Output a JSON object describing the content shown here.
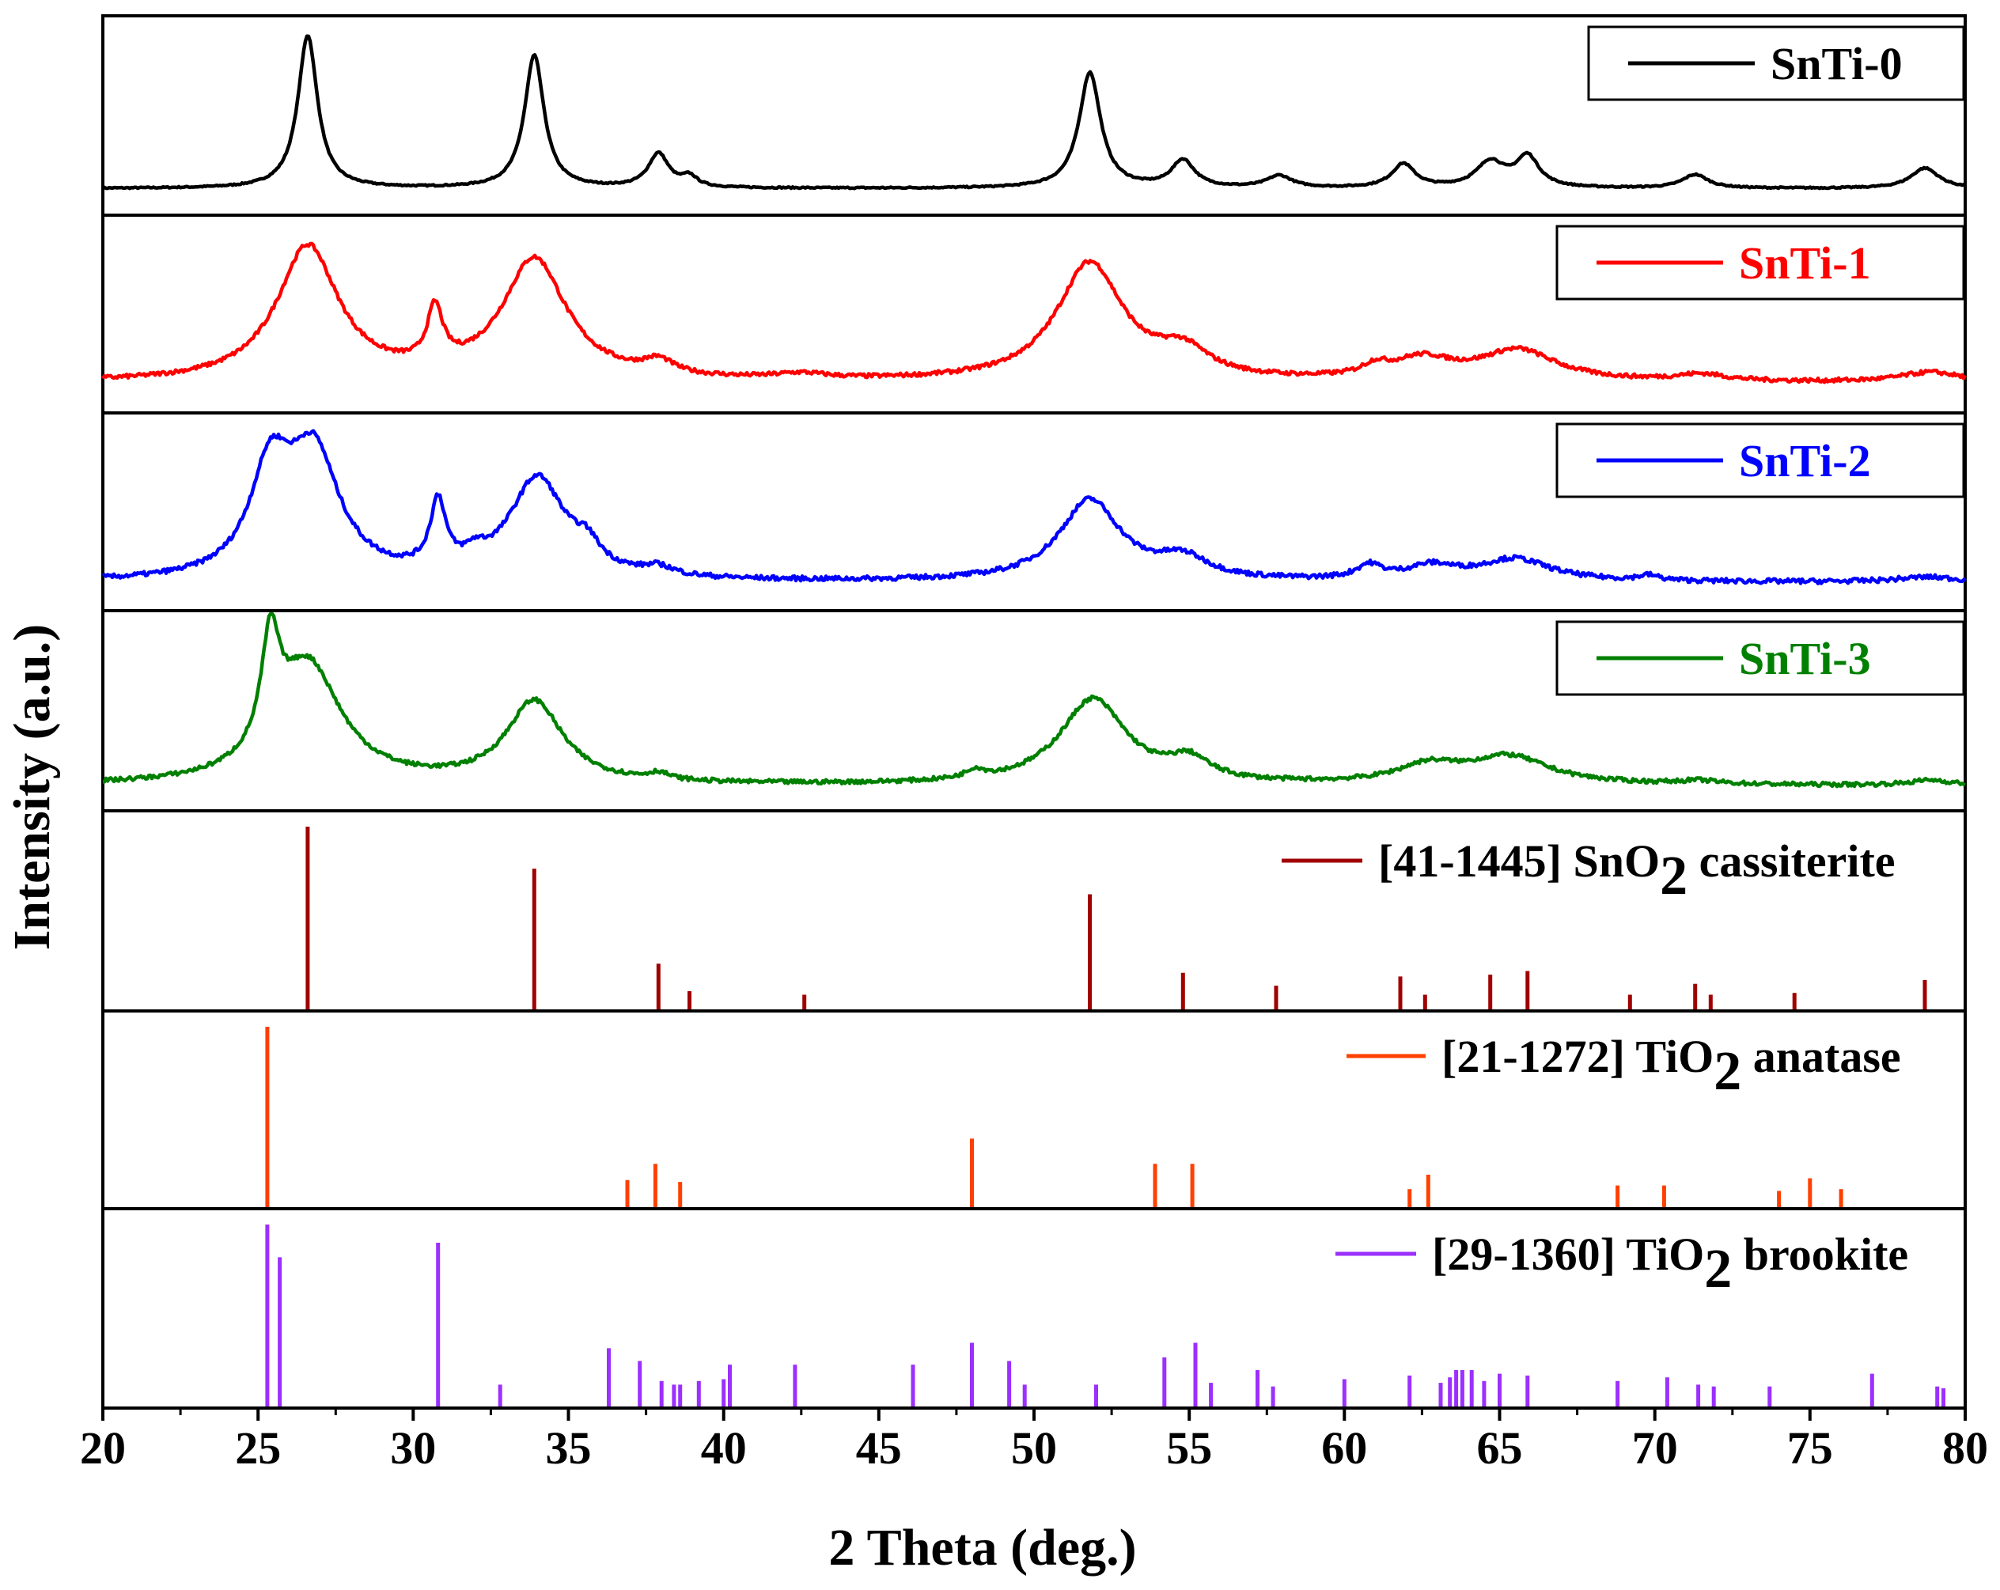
{
  "chart_data": {
    "type": "line",
    "xlabel": "2 Theta (deg.)",
    "ylabel": "Intensity (a.u.)",
    "xlim": [
      20,
      80
    ],
    "xticks": [
      "20",
      "25",
      "30",
      "35",
      "40",
      "45",
      "50",
      "55",
      "60",
      "65",
      "70",
      "75",
      "80"
    ],
    "series": [
      {
        "name": "SnTi-0",
        "color": "#000000",
        "baseline": 0.1,
        "peaks": [
          [
            26.6,
            0.9,
            0.38
          ],
          [
            33.9,
            0.78,
            0.38
          ],
          [
            37.9,
            0.2,
            0.4
          ],
          [
            38.9,
            0.06,
            0.3
          ],
          [
            51.8,
            0.68,
            0.42
          ],
          [
            54.8,
            0.16,
            0.45
          ],
          [
            57.9,
            0.07,
            0.5
          ],
          [
            61.9,
            0.14,
            0.45
          ],
          [
            64.7,
            0.15,
            0.55
          ],
          [
            65.9,
            0.18,
            0.45
          ],
          [
            71.3,
            0.08,
            0.5
          ],
          [
            78.7,
            0.12,
            0.55
          ]
        ]
      },
      {
        "name": "SnTi-1",
        "color": "#ff0000",
        "baseline": 0.12,
        "peaks": [
          [
            26.6,
            0.8,
            1.2
          ],
          [
            30.7,
            0.33,
            0.3
          ],
          [
            33.9,
            0.72,
            1.25
          ],
          [
            37.9,
            0.08,
            0.6
          ],
          [
            42.5,
            0.03,
            1.0
          ],
          [
            51.8,
            0.7,
            1.3
          ],
          [
            54.8,
            0.15,
            1.0
          ],
          [
            61.0,
            0.06,
            0.5
          ],
          [
            62.5,
            0.12,
            1.2
          ],
          [
            65.6,
            0.18,
            1.5
          ],
          [
            71.5,
            0.04,
            1.0
          ],
          [
            78.9,
            0.06,
            1.2
          ]
        ]
      },
      {
        "name": "SnTi-2",
        "color": "#0000ff",
        "baseline": 0.11,
        "peaks": [
          [
            25.4,
            0.6,
            0.8
          ],
          [
            26.8,
            0.72,
            1.0
          ],
          [
            30.8,
            0.4,
            0.3
          ],
          [
            32.0,
            0.07,
            0.4
          ],
          [
            34.0,
            0.6,
            1.1
          ],
          [
            35.6,
            0.12,
            0.5
          ],
          [
            37.9,
            0.05,
            0.6
          ],
          [
            51.8,
            0.48,
            1.2
          ],
          [
            54.8,
            0.12,
            1.0
          ],
          [
            60.8,
            0.08,
            0.5
          ],
          [
            62.8,
            0.08,
            1.0
          ],
          [
            65.5,
            0.13,
            1.4
          ],
          [
            69.8,
            0.03,
            0.4
          ],
          [
            78.8,
            0.03,
            1.2
          ]
        ]
      },
      {
        "name": "SnTi-3",
        "color": "#008000",
        "baseline": 0.09,
        "peaks": [
          [
            25.4,
            0.62,
            0.35
          ],
          [
            26.6,
            0.7,
            1.3
          ],
          [
            33.9,
            0.48,
            1.1
          ],
          [
            37.9,
            0.04,
            0.4
          ],
          [
            48.1,
            0.05,
            0.35
          ],
          [
            51.9,
            0.5,
            1.3
          ],
          [
            55.0,
            0.12,
            0.8
          ],
          [
            62.7,
            0.1,
            1.2
          ],
          [
            65.3,
            0.16,
            1.6
          ],
          [
            71.4,
            0.02,
            0.8
          ],
          [
            78.9,
            0.03,
            0.8
          ]
        ]
      }
    ],
    "references": [
      {
        "name": "[41-1445] SnO2 cassiterite",
        "label_prefix": "[41-1445] SnO",
        "label_sub": "2",
        "label_suffix": " cassiterite",
        "color": "#a00000",
        "lines": [
          [
            26.6,
            1.0
          ],
          [
            33.9,
            0.77
          ],
          [
            37.9,
            0.25
          ],
          [
            38.9,
            0.1
          ],
          [
            42.6,
            0.08
          ],
          [
            51.8,
            0.63
          ],
          [
            54.8,
            0.2
          ],
          [
            57.8,
            0.13
          ],
          [
            61.8,
            0.18
          ],
          [
            62.6,
            0.08
          ],
          [
            64.7,
            0.19
          ],
          [
            65.9,
            0.21
          ],
          [
            69.2,
            0.08
          ],
          [
            71.3,
            0.14
          ],
          [
            71.8,
            0.08
          ],
          [
            74.5,
            0.09
          ],
          [
            78.7,
            0.16
          ]
        ]
      },
      {
        "name": "[21-1272] TiO2 anatase",
        "label_prefix": "[21-1272] TiO",
        "label_sub": "2",
        "label_suffix": " anatase",
        "color": "#ff4000",
        "lines": [
          [
            25.3,
            1.0
          ],
          [
            36.9,
            0.15
          ],
          [
            37.8,
            0.24
          ],
          [
            38.6,
            0.14
          ],
          [
            48.0,
            0.38
          ],
          [
            53.9,
            0.24
          ],
          [
            55.1,
            0.24
          ],
          [
            62.1,
            0.1
          ],
          [
            62.7,
            0.18
          ],
          [
            68.8,
            0.12
          ],
          [
            70.3,
            0.12
          ],
          [
            74.0,
            0.09
          ],
          [
            75.0,
            0.16
          ],
          [
            76.0,
            0.1
          ]
        ]
      },
      {
        "name": "[29-1360] TiO2 brookite",
        "label_prefix": "[29-1360] TiO",
        "label_sub": "2",
        "label_suffix": " brookite",
        "color": "#9b30ff",
        "lines": [
          [
            25.3,
            1.0
          ],
          [
            25.7,
            0.82
          ],
          [
            30.8,
            0.9
          ],
          [
            32.8,
            0.12
          ],
          [
            36.3,
            0.32
          ],
          [
            37.3,
            0.25
          ],
          [
            38.0,
            0.14
          ],
          [
            38.4,
            0.12
          ],
          [
            38.6,
            0.12
          ],
          [
            39.2,
            0.14
          ],
          [
            40.0,
            0.15
          ],
          [
            40.2,
            0.23
          ],
          [
            42.3,
            0.23
          ],
          [
            46.1,
            0.23
          ],
          [
            48.0,
            0.35
          ],
          [
            49.2,
            0.25
          ],
          [
            49.7,
            0.12
          ],
          [
            52.0,
            0.12
          ],
          [
            54.2,
            0.27
          ],
          [
            55.2,
            0.35
          ],
          [
            55.7,
            0.13
          ],
          [
            57.2,
            0.2
          ],
          [
            57.7,
            0.11
          ],
          [
            60.0,
            0.15
          ],
          [
            62.1,
            0.17
          ],
          [
            63.1,
            0.13
          ],
          [
            63.4,
            0.16
          ],
          [
            63.6,
            0.2
          ],
          [
            63.8,
            0.2
          ],
          [
            64.1,
            0.2
          ],
          [
            64.5,
            0.14
          ],
          [
            65.0,
            0.18
          ],
          [
            65.9,
            0.17
          ],
          [
            68.8,
            0.14
          ],
          [
            70.4,
            0.16
          ],
          [
            71.4,
            0.12
          ],
          [
            71.9,
            0.11
          ],
          [
            73.7,
            0.11
          ],
          [
            77.0,
            0.18
          ],
          [
            79.1,
            0.11
          ],
          [
            79.3,
            0.1
          ]
        ]
      }
    ]
  }
}
